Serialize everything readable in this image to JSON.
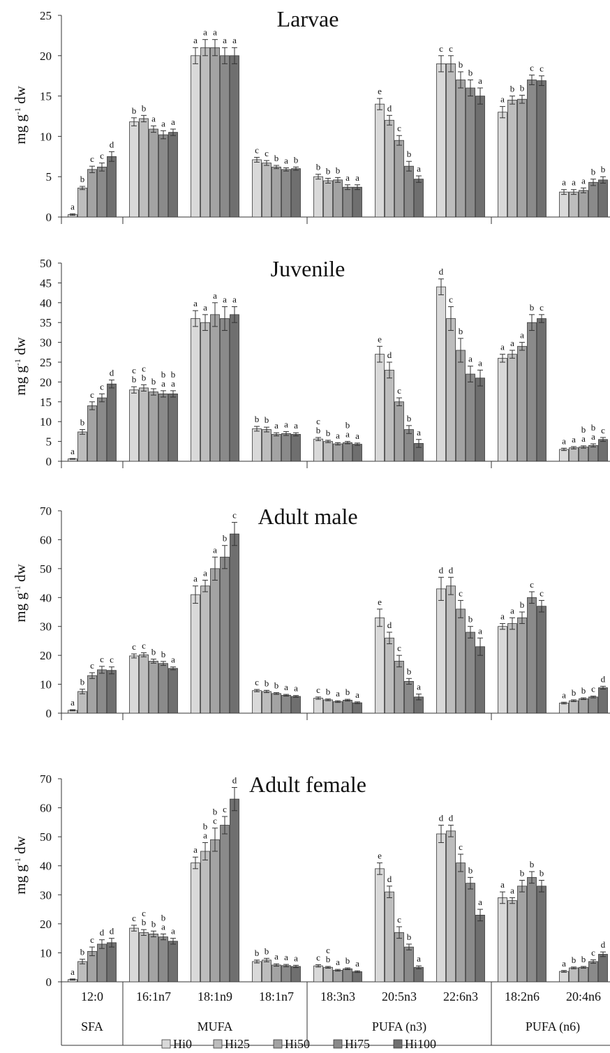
{
  "chart_data": {
    "type": "bar",
    "categories": [
      "12:0",
      "16:1n7",
      "18:1n9",
      "18:1n7",
      "18:3n3",
      "20:5n3",
      "22:6n3",
      "18:2n6",
      "20:4n6"
    ],
    "groups": [
      {
        "label": "SFA",
        "categories": [
          "12:0"
        ]
      },
      {
        "label": "MUFA",
        "categories": [
          "16:1n7",
          "18:1n9",
          "18:1n7"
        ]
      },
      {
        "label": "PUFA (n3)",
        "categories": [
          "18:3n3",
          "20:5n3",
          "22:6n3"
        ]
      },
      {
        "label": "PUFA (n6)",
        "categories": [
          "18:2n6",
          "20:4n6"
        ]
      }
    ],
    "series_names": [
      "Hi0",
      "Hi25",
      "Hi50",
      "Hi75",
      "Hi100"
    ],
    "series_colors": [
      "#d9d9d9",
      "#bdbdbd",
      "#a3a3a3",
      "#8a8a8a",
      "#6f6f6f"
    ],
    "panels": [
      {
        "title": "Larvae",
        "ylabel": "mg g-1 dw",
        "ylim": [
          0,
          25
        ],
        "yticks": [
          0,
          5,
          10,
          15,
          20,
          25
        ],
        "values": [
          [
            0.3,
            3.6,
            5.9,
            6.2,
            7.5
          ],
          [
            11.8,
            12.2,
            10.9,
            10.2,
            10.5
          ],
          [
            20,
            21,
            21,
            20,
            20
          ],
          [
            7.1,
            6.7,
            6.2,
            5.9,
            6
          ],
          [
            5,
            4.5,
            4.6,
            3.7,
            3.7
          ],
          [
            14,
            12,
            9.5,
            6.3,
            4.7
          ],
          [
            19,
            19,
            17,
            16,
            15
          ],
          [
            13,
            14.5,
            14.6,
            17,
            16.9
          ],
          [
            3.1,
            3.1,
            3.3,
            4.3,
            4.6
          ]
        ],
        "errors": [
          [
            0.1,
            0.2,
            0.4,
            0.5,
            0.6
          ],
          [
            0.5,
            0.4,
            0.4,
            0.5,
            0.4
          ],
          [
            1,
            1,
            1,
            1,
            1
          ],
          [
            0.3,
            0.3,
            0.2,
            0.2,
            0.2
          ],
          [
            0.3,
            0.3,
            0.3,
            0.3,
            0.3
          ],
          [
            0.7,
            0.6,
            0.6,
            0.6,
            0.4
          ],
          [
            1,
            1,
            1,
            1,
            1
          ],
          [
            0.7,
            0.5,
            0.5,
            0.6,
            0.6
          ],
          [
            0.3,
            0.3,
            0.3,
            0.4,
            0.4
          ]
        ],
        "letters": [
          [
            "a",
            "b",
            "c",
            "c",
            "d"
          ],
          [
            "b",
            "b",
            "a",
            "a",
            "a"
          ],
          [
            "a",
            "a",
            "a",
            "a",
            "a"
          ],
          [
            "c",
            "c",
            "b",
            "a",
            "b"
          ],
          [
            "b",
            "b",
            "b",
            "a",
            "a"
          ],
          [
            "e",
            "d",
            "c",
            "b",
            "a"
          ],
          [
            "c",
            "c",
            "b",
            "b",
            "a"
          ],
          [
            "a",
            "b",
            "b",
            "c",
            "c"
          ],
          [
            "a",
            "a",
            "a",
            "b",
            "b"
          ]
        ]
      },
      {
        "title": "Juvenile",
        "ylabel": "mg g-1 dw",
        "ylim": [
          0,
          50
        ],
        "yticks": [
          0,
          5,
          10,
          15,
          20,
          25,
          30,
          35,
          40,
          45,
          50
        ],
        "values": [
          [
            0.6,
            7.4,
            14,
            16,
            19.5
          ],
          [
            18,
            18.5,
            17.5,
            17,
            17
          ],
          [
            36,
            35,
            37,
            36,
            37
          ],
          [
            8.2,
            8,
            6.8,
            7,
            6.8
          ],
          [
            5.6,
            5,
            4.4,
            4.7,
            4.3
          ],
          [
            27,
            23,
            15,
            8,
            4.5
          ],
          [
            44,
            36,
            28,
            22,
            21
          ],
          [
            26,
            27,
            29,
            35,
            36
          ],
          [
            3,
            3.4,
            3.6,
            4,
            5.5
          ]
        ],
        "errors": [
          [
            0.1,
            0.6,
            1,
            1,
            1
          ],
          [
            0.8,
            0.8,
            0.8,
            0.8,
            0.8
          ],
          [
            2,
            2,
            3,
            3,
            2
          ],
          [
            0.6,
            0.6,
            0.4,
            0.5,
            0.4
          ],
          [
            0.4,
            0.3,
            0.3,
            0.3,
            0.3
          ],
          [
            2,
            2,
            1,
            1,
            1
          ],
          [
            2,
            3,
            3,
            2,
            2
          ],
          [
            1,
            1,
            1,
            2,
            1
          ],
          [
            0.3,
            0.3,
            0.3,
            0.4,
            0.5
          ]
        ],
        "letters": [
          [
            "a",
            "b",
            "c",
            "c",
            "d"
          ],
          [
            "cb",
            "cb",
            "b",
            "ba",
            "ba"
          ],
          [
            "a",
            "a",
            "a",
            "a",
            "a"
          ],
          [
            "b",
            "b",
            "a",
            "a",
            "a"
          ],
          [
            "cb",
            "b",
            "a",
            "ba",
            "a"
          ],
          [
            "e",
            "d",
            "c",
            "b",
            "a"
          ],
          [
            "d",
            "c",
            "b",
            "a",
            "a"
          ],
          [
            "a",
            "a",
            "a",
            "b",
            "c"
          ],
          [
            "a",
            "a",
            "ba",
            "ba",
            "c"
          ]
        ]
      },
      {
        "title": "Adult male",
        "ylabel": "mg g-1 dw",
        "ylim": [
          0,
          70
        ],
        "yticks": [
          0,
          10,
          20,
          30,
          40,
          50,
          60,
          70
        ],
        "values": [
          [
            1,
            7.5,
            13,
            15,
            14.8
          ],
          [
            19.8,
            20.2,
            18,
            17.2,
            15.5
          ],
          [
            41,
            44,
            50,
            54,
            62
          ],
          [
            7.8,
            7.5,
            6.8,
            6.2,
            5.8
          ],
          [
            5.2,
            4.6,
            4,
            4.5,
            3.6
          ],
          [
            33,
            26,
            18,
            11,
            5.6
          ],
          [
            43,
            44,
            36,
            28,
            23
          ],
          [
            30,
            31,
            33,
            40,
            37
          ],
          [
            3.5,
            4.3,
            5,
            5.6,
            8.8
          ]
        ],
        "errors": [
          [
            0.2,
            0.8,
            1,
            1.2,
            1.2
          ],
          [
            0.7,
            0.7,
            0.7,
            0.7,
            0.5
          ],
          [
            3,
            2,
            4,
            4,
            4
          ],
          [
            0.4,
            0.4,
            0.3,
            0.3,
            0.3
          ],
          [
            0.4,
            0.3,
            0.3,
            0.3,
            0.3
          ],
          [
            3,
            2,
            2,
            1,
            1
          ],
          [
            4,
            3,
            3,
            2,
            3
          ],
          [
            1,
            2,
            2,
            2,
            2
          ],
          [
            0.3,
            0.3,
            0.3,
            0.3,
            0.5
          ]
        ],
        "letters": [
          [
            "a",
            "b",
            "c",
            "c",
            "c"
          ],
          [
            "c",
            "c",
            "b",
            "b",
            "a"
          ],
          [
            "a",
            "a",
            "a",
            "b",
            "c"
          ],
          [
            "c",
            "b",
            "b",
            "a",
            "a"
          ],
          [
            "c",
            "b",
            "a",
            "b",
            "a"
          ],
          [
            "e",
            "d",
            "c",
            "b",
            "a"
          ],
          [
            "d",
            "d",
            "c",
            "b",
            "a"
          ],
          [
            "a",
            "a",
            "b",
            "c",
            "c"
          ],
          [
            "a",
            "b",
            "b",
            "c",
            "d"
          ]
        ]
      },
      {
        "title": "Adult female",
        "ylabel": "mg g-1 dw",
        "ylim": [
          0,
          70
        ],
        "yticks": [
          0,
          10,
          20,
          30,
          40,
          50,
          60,
          70
        ],
        "values": [
          [
            0.8,
            7,
            10.5,
            13,
            13.5
          ],
          [
            18.5,
            17,
            16.5,
            15.5,
            14
          ],
          [
            41,
            45,
            49,
            54,
            63
          ],
          [
            7,
            7.5,
            5.8,
            5.6,
            5.3
          ],
          [
            5.5,
            5,
            4,
            4.5,
            3.5
          ],
          [
            39,
            31,
            17,
            12,
            5
          ],
          [
            51,
            52,
            41,
            34,
            23
          ],
          [
            29,
            28,
            33,
            36,
            33
          ],
          [
            3.6,
            4.8,
            5,
            7,
            9.5
          ]
        ],
        "errors": [
          [
            0.2,
            0.8,
            1.5,
            1.5,
            1.5
          ],
          [
            1,
            1,
            1,
            1,
            1
          ],
          [
            2,
            3,
            4,
            3,
            4
          ],
          [
            0.5,
            0.6,
            0.4,
            0.4,
            0.4
          ],
          [
            0.4,
            0.3,
            0.3,
            0.3,
            0.3
          ],
          [
            2,
            2,
            2,
            1,
            0.5
          ],
          [
            3,
            2,
            3,
            2,
            2
          ],
          [
            2,
            1,
            2,
            2,
            2
          ],
          [
            0.3,
            0.3,
            0.3,
            0.6,
            0.8
          ]
        ],
        "letters": [
          [
            "a",
            "b",
            "c",
            "d",
            "d"
          ],
          [
            "c",
            "cb",
            "b",
            "ba",
            "a"
          ],
          [
            "a",
            "ba",
            "bc",
            "c",
            "d"
          ],
          [
            "b",
            "b",
            "a",
            "a",
            "a"
          ],
          [
            "c",
            "cb",
            "a",
            "b",
            "a"
          ],
          [
            "e",
            "d",
            "c",
            "b",
            "a"
          ],
          [
            "d",
            "d",
            "c",
            "b",
            "a"
          ],
          [
            "a",
            "a",
            "b",
            "b",
            "b"
          ],
          [
            "a",
            "b",
            "b",
            "c",
            "d"
          ]
        ]
      }
    ]
  }
}
